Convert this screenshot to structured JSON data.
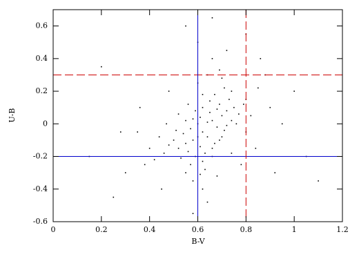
{
  "chart_data": {
    "type": "scatter",
    "x_label": "B-V",
    "y_label": "U-B",
    "xlim": [
      0,
      1.2
    ],
    "ylim": [
      -0.6,
      0.7
    ],
    "xticks": [
      0,
      0.2,
      0.4,
      0.6,
      0.8,
      1,
      1.2
    ],
    "yticks": [
      -0.6,
      -0.4,
      -0.2,
      0,
      0.2,
      0.4,
      0.6
    ],
    "color": "#000000",
    "hlines": [
      {
        "value": -0.2,
        "color": "#0000cc",
        "dashed": false
      },
      {
        "value": 0.3,
        "color": "#cc0000",
        "dashed": true
      }
    ],
    "vlines": [
      {
        "value": 0.6,
        "color": "#0000cc",
        "dashed": false
      },
      {
        "value": 0.8,
        "color": "#cc0000",
        "dashed": true
      }
    ],
    "x": [
      0.62,
      0.58,
      0.66,
      0.7,
      0.55,
      0.64,
      0.6,
      0.68,
      0.72,
      0.52,
      0.63,
      0.57,
      0.75,
      0.61,
      0.67,
      0.54,
      0.69,
      0.59,
      0.65,
      0.71,
      0.5,
      0.62,
      0.74,
      0.56,
      0.66,
      0.6,
      0.73,
      0.64,
      0.58,
      0.77,
      0.53,
      0.68,
      0.62,
      0.7,
      0.48,
      0.65,
      0.57,
      0.79,
      0.61,
      0.72,
      0.55,
      0.67,
      0.63,
      0.76,
      0.51,
      0.69,
      0.59,
      0.74,
      0.46,
      0.66,
      0.8,
      0.82,
      0.85,
      0.44,
      0.42,
      0.6,
      0.64,
      0.7,
      0.58,
      0.62,
      0.55,
      0.68,
      0.9,
      0.88,
      0.4,
      0.38,
      0.66,
      0.6,
      0.72,
      0.64,
      0.58,
      0.95,
      1.0,
      0.35,
      0.3,
      0.2,
      0.15,
      1.05,
      1.1,
      0.8,
      0.55,
      0.66,
      0.48,
      0.45,
      0.78,
      0.84,
      0.92,
      0.36,
      0.28,
      0.25,
      0.86,
      0.62,
      0.56,
      0.74,
      0.52,
      0.8,
      0.47,
      0.71,
      0.61,
      0.69
    ],
    "values": [
      -0.05,
      -0.1,
      0.02,
      0.05,
      -0.12,
      -0.08,
      0.0,
      -0.02,
      0.08,
      -0.15,
      -0.18,
      -0.03,
      0.1,
      0.04,
      -0.12,
      -0.06,
      0.12,
      -0.2,
      0.07,
      -0.04,
      -0.1,
      0.1,
      0.02,
      -0.17,
      -0.15,
      -0.08,
      0.15,
      0.01,
      0.03,
      0.06,
      -0.21,
      0.09,
      -0.23,
      -0.08,
      -0.13,
      0.14,
      -0.25,
      0.12,
      -0.14,
      -0.01,
      0.02,
      0.18,
      -0.28,
      0.0,
      -0.04,
      -0.1,
      0.08,
      0.2,
      -0.18,
      -0.2,
      0.15,
      0.05,
      0.22,
      -0.08,
      -0.22,
      0.25,
      0.3,
      0.28,
      -0.35,
      -0.4,
      -0.3,
      -0.32,
      0.1,
      0.3,
      -0.15,
      -0.25,
      0.4,
      0.5,
      0.45,
      -0.48,
      -0.55,
      0.0,
      0.2,
      -0.05,
      -0.3,
      0.35,
      -0.2,
      -0.2,
      -0.35,
      0.55,
      0.6,
      0.65,
      0.2,
      -0.4,
      -0.25,
      -0.15,
      -0.3,
      0.1,
      -0.05,
      -0.45,
      0.4,
      0.18,
      0.12,
      -0.18,
      0.06,
      -0.05,
      0.0,
      0.22,
      -0.31,
      0.33
    ]
  }
}
